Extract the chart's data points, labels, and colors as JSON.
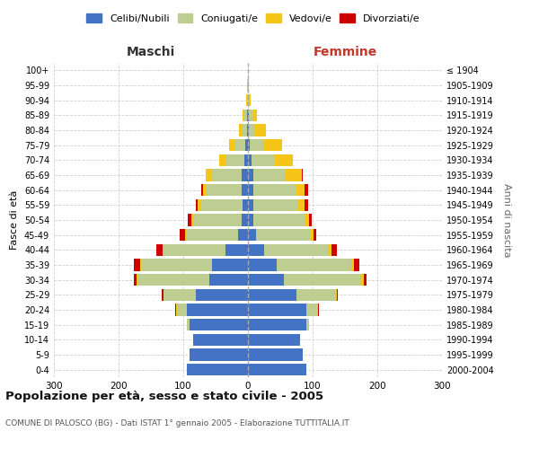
{
  "age_groups": [
    "0-4",
    "5-9",
    "10-14",
    "15-19",
    "20-24",
    "25-29",
    "30-34",
    "35-39",
    "40-44",
    "45-49",
    "50-54",
    "55-59",
    "60-64",
    "65-69",
    "70-74",
    "75-79",
    "80-84",
    "85-89",
    "90-94",
    "95-99",
    "100+"
  ],
  "birth_years": [
    "2000-2004",
    "1995-1999",
    "1990-1994",
    "1985-1989",
    "1980-1984",
    "1975-1979",
    "1970-1974",
    "1965-1969",
    "1960-1964",
    "1955-1959",
    "1950-1954",
    "1945-1949",
    "1940-1944",
    "1935-1939",
    "1930-1934",
    "1925-1929",
    "1920-1924",
    "1915-1919",
    "1910-1914",
    "1905-1909",
    "≤ 1904"
  ],
  "male": {
    "celibi": [
      95,
      90,
      85,
      90,
      95,
      80,
      60,
      55,
      35,
      15,
      10,
      8,
      10,
      10,
      5,
      4,
      2,
      2,
      0,
      0,
      0
    ],
    "coniugati": [
      0,
      0,
      0,
      5,
      15,
      50,
      110,
      110,
      95,
      80,
      75,
      65,
      55,
      45,
      30,
      15,
      8,
      5,
      2,
      1,
      0
    ],
    "vedovi": [
      0,
      0,
      0,
      0,
      1,
      1,
      2,
      2,
      2,
      2,
      3,
      5,
      5,
      10,
      10,
      10,
      4,
      2,
      1,
      0,
      0
    ],
    "divorziati": [
      0,
      0,
      0,
      0,
      1,
      2,
      5,
      10,
      10,
      8,
      5,
      2,
      2,
      0,
      0,
      0,
      0,
      0,
      0,
      0,
      0
    ]
  },
  "female": {
    "nubili": [
      90,
      85,
      80,
      90,
      90,
      75,
      55,
      45,
      25,
      12,
      8,
      8,
      8,
      8,
      5,
      3,
      2,
      2,
      0,
      0,
      0
    ],
    "coniugate": [
      0,
      0,
      0,
      5,
      18,
      60,
      120,
      115,
      100,
      85,
      80,
      70,
      65,
      50,
      35,
      20,
      8,
      6,
      2,
      1,
      0
    ],
    "vedove": [
      0,
      0,
      0,
      0,
      1,
      2,
      4,
      4,
      4,
      4,
      6,
      10,
      15,
      25,
      30,
      30,
      18,
      6,
      2,
      0,
      0
    ],
    "divorziate": [
      0,
      0,
      0,
      0,
      1,
      2,
      5,
      8,
      8,
      5,
      5,
      5,
      5,
      2,
      0,
      0,
      0,
      0,
      0,
      0,
      0
    ]
  },
  "colors": {
    "celibi_nubili": "#4472C4",
    "coniugati": "#BECE93",
    "vedovi": "#F5C518",
    "divorziati": "#CC0000"
  },
  "xlim": 300,
  "title": "Popolazione per età, sesso e stato civile - 2005",
  "subtitle": "COMUNE DI PALOSCO (BG) - Dati ISTAT 1° gennaio 2005 - Elaborazione TUTTITALIA.IT",
  "ylabel_left": "Fasce di età",
  "ylabel_right": "Anni di nascita",
  "xlabel_left": "Maschi",
  "xlabel_right": "Femmine",
  "background_color": "#ffffff",
  "grid_color": "#cccccc"
}
